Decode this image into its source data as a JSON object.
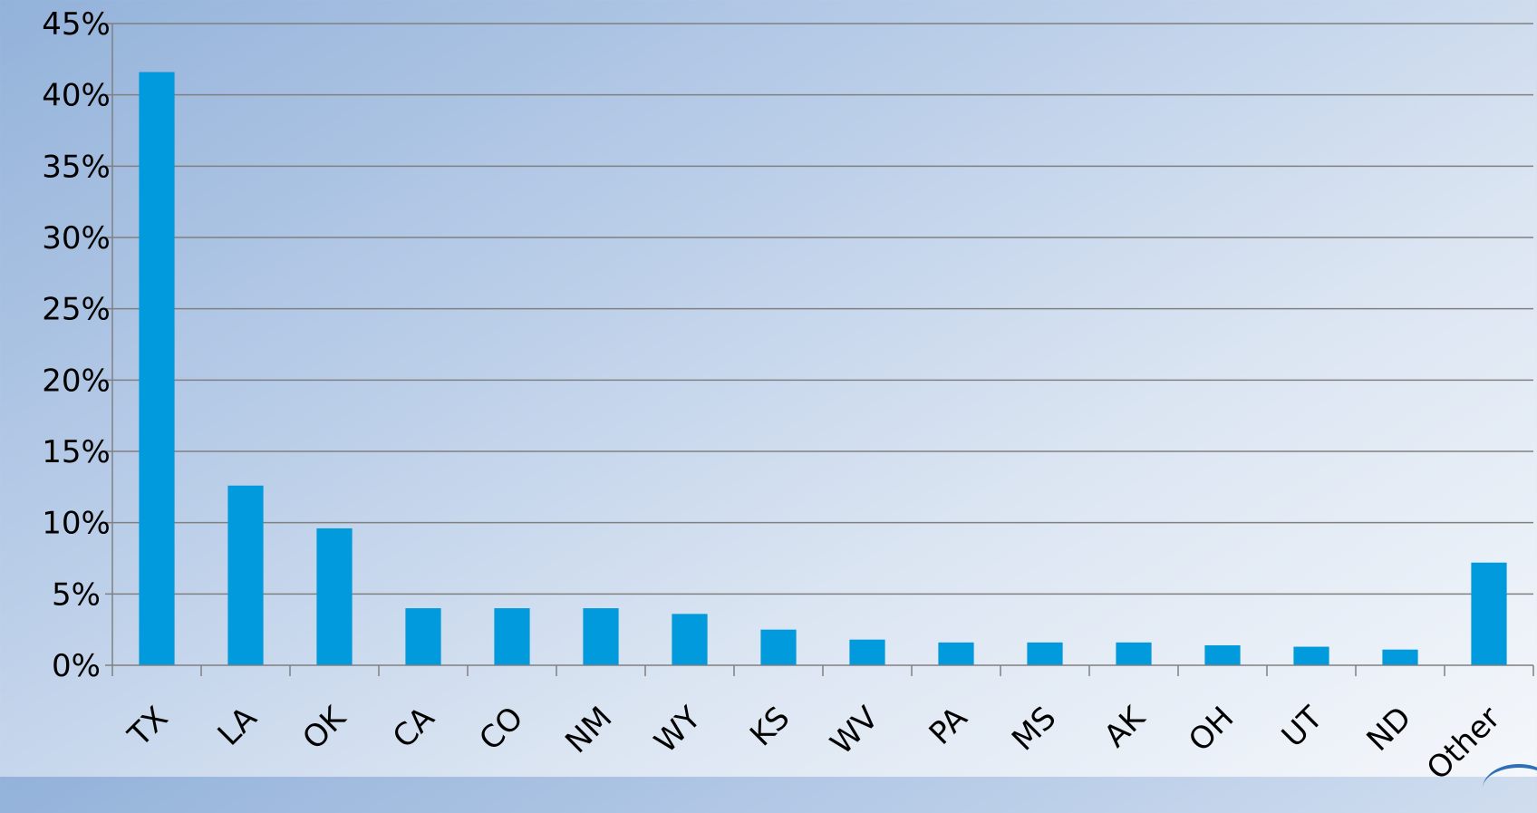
{
  "chart_data": {
    "type": "bar",
    "title": "",
    "xlabel": "",
    "ylabel": "",
    "categories": [
      "TX",
      "LA",
      "OK",
      "CA",
      "CO",
      "NM",
      "WY",
      "KS",
      "WV",
      "PA",
      "MS",
      "AK",
      "OH",
      "UT",
      "ND",
      "Other"
    ],
    "values": [
      41.6,
      12.6,
      9.6,
      4.0,
      4.0,
      4.0,
      3.6,
      2.5,
      1.8,
      1.6,
      1.6,
      1.6,
      1.4,
      1.3,
      1.1,
      7.2
    ],
    "value_unit": "%",
    "ylim": [
      0,
      45
    ],
    "y_ticks": [
      "0%",
      "5%",
      "10%",
      "15%",
      "20%",
      "25%",
      "30%",
      "35%",
      "40%",
      "45%"
    ],
    "grid": true,
    "legend": "none",
    "bar_color": "#009ADD",
    "gridline_color": "#808080"
  }
}
